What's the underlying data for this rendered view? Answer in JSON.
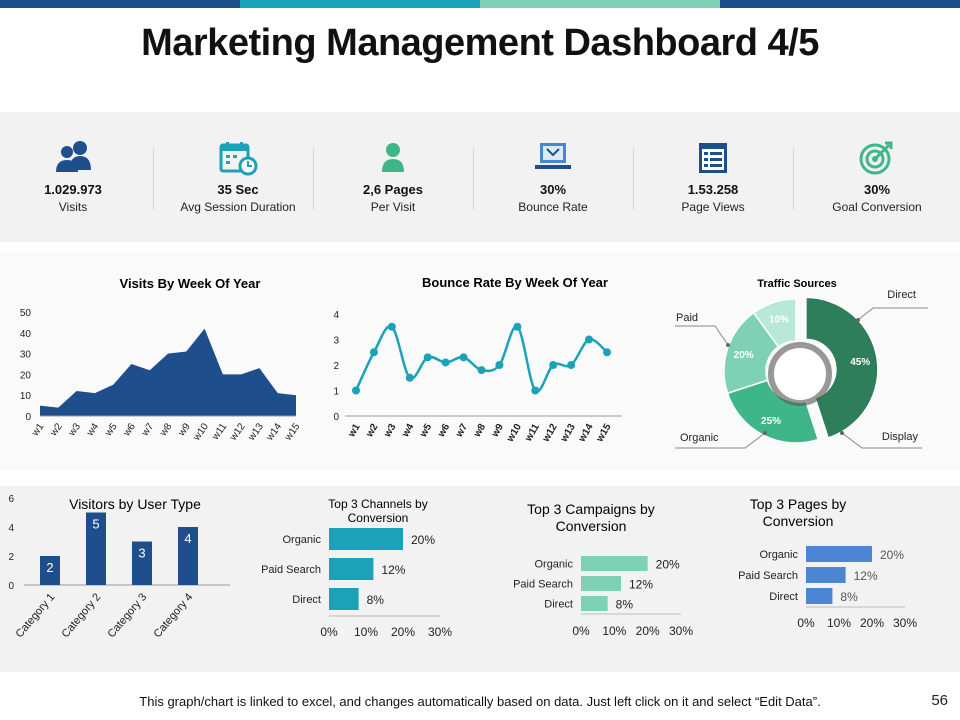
{
  "title": "Marketing Management Dashboard 4/5",
  "page_number": "56",
  "footnote": "This graph/chart is linked to excel, and changes automatically based on data. Just left click on it and select “Edit Data”.",
  "colors": {
    "navy": "#1f4e8c",
    "teal": "#1aa3b8",
    "green": "#2e7d5b",
    "mint": "#7fd1b6",
    "blue": "#4a86d4",
    "accent_green": "#3fb68a"
  },
  "kpis": [
    {
      "value": "1.029.973",
      "label": "Visits",
      "icon": "users-icon"
    },
    {
      "value": "35 Sec",
      "label": "Avg Session Duration",
      "icon": "calendar-clock-icon"
    },
    {
      "value": "2,6 Pages",
      "label": "Per Visit",
      "icon": "person-icon"
    },
    {
      "value": "30%",
      "label": "Bounce Rate",
      "icon": "laptop-icon"
    },
    {
      "value": "1.53.258",
      "label": "Page Views",
      "icon": "document-icon"
    },
    {
      "value": "30%",
      "label": "Goal Conversion",
      "icon": "target-icon"
    }
  ],
  "chart_data": [
    {
      "type": "area",
      "title": "Visits By Week Of Year",
      "categories": [
        "w1",
        "w2",
        "w3",
        "w4",
        "w5",
        "w6",
        "w7",
        "w8",
        "w9",
        "w10",
        "w11",
        "w12",
        "w13",
        "w14",
        "w15"
      ],
      "values": [
        5,
        4,
        12,
        11,
        15,
        25,
        22,
        30,
        31,
        42,
        20,
        20,
        23,
        11,
        10
      ],
      "ylim": [
        0,
        50
      ],
      "yticks": [
        "0",
        "10",
        "20",
        "30",
        "40",
        "50"
      ]
    },
    {
      "type": "line",
      "title": "Bounce Rate By Week Of Year",
      "categories": [
        "w1",
        "w2",
        "w3",
        "w4",
        "w5",
        "w6",
        "w7",
        "w8",
        "w9",
        "w10",
        "w11",
        "w12",
        "w13",
        "w14",
        "w15"
      ],
      "values": [
        1,
        2.5,
        3.5,
        1.5,
        2.3,
        2.1,
        2.3,
        1.8,
        2.0,
        3.5,
        1.0,
        2.0,
        2.0,
        3.0,
        2.5
      ],
      "ylim": [
        0,
        4
      ],
      "yticks": [
        "0",
        "1",
        "2",
        "3",
        "4"
      ]
    },
    {
      "type": "pie",
      "title": "Traffic Sources",
      "slices": [
        {
          "name": "Direct",
          "value": 45,
          "label": "45%"
        },
        {
          "name": "Display",
          "value": 25,
          "label": "25%"
        },
        {
          "name": "Organic",
          "value": 20,
          "label": "20%"
        },
        {
          "name": "Paid",
          "value": 10,
          "label": "10%"
        }
      ]
    },
    {
      "type": "bar",
      "title": "Visitors by User Type",
      "categories": [
        "Category 1",
        "Category 2",
        "Category 3",
        "Category 4"
      ],
      "values": [
        2,
        5,
        3,
        4
      ],
      "ylim": [
        0,
        6
      ],
      "yticks": [
        "0",
        "2",
        "4",
        "6"
      ]
    },
    {
      "type": "bar",
      "orientation": "horizontal",
      "title": "Top 3 Channels  by Conversion",
      "categories": [
        "Organic",
        "Paid Search",
        "Direct"
      ],
      "values": [
        20,
        12,
        8
      ],
      "value_labels": [
        "20%",
        "12%",
        "8%"
      ],
      "xlim": [
        0,
        30
      ],
      "xticks": [
        "0%",
        "10%",
        "20%",
        "30%"
      ]
    },
    {
      "type": "bar",
      "orientation": "horizontal",
      "title": "Top 3 Campaigns by Conversion",
      "categories": [
        "Organic",
        "Paid Search",
        "Direct"
      ],
      "values": [
        20,
        12,
        8
      ],
      "value_labels": [
        "20%",
        "12%",
        "8%"
      ],
      "xlim": [
        0,
        30
      ],
      "xticks": [
        "0%",
        "10%",
        "20%",
        "30%"
      ]
    },
    {
      "type": "bar",
      "orientation": "horizontal",
      "title": "Top 3 Pages by Conversion",
      "categories": [
        "Organic",
        "Paid Search",
        "Direct"
      ],
      "values": [
        20,
        12,
        8
      ],
      "value_labels": [
        "20%",
        "12%",
        "8%"
      ],
      "xlim": [
        0,
        30
      ],
      "xticks": [
        "0%",
        "10%",
        "20%",
        "30%"
      ]
    }
  ]
}
